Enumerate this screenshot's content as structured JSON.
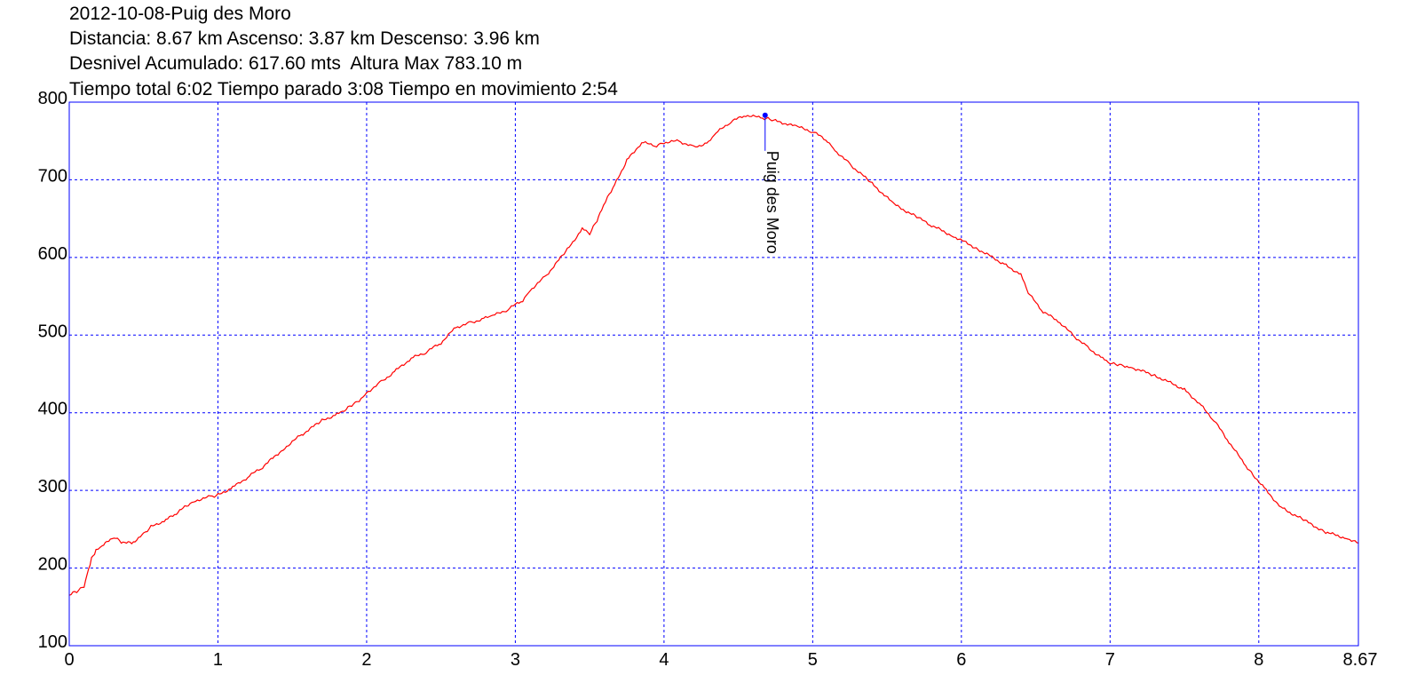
{
  "header": {
    "line1": "2012-10-08-Puig des Moro",
    "line2": "Distancia: 8.67 km Ascenso: 3.87 km Descenso: 3.96 km",
    "line3": "Desnivel Acumulado: 617.60 mts  Altura Max 783.10 m",
    "line4": "Tiempo total 6:02 Tiempo parado 3:08 Tiempo en movimiento 2:54"
  },
  "colors": {
    "line": "#ff0000",
    "grid": "#0000ff",
    "frame": "#0000ff",
    "marker": "#0000ff"
  },
  "chart_data": {
    "type": "line",
    "title": "2012-10-08-Puig des Moro",
    "xlabel": "",
    "ylabel": "",
    "xlim": [
      0,
      8.67
    ],
    "ylim": [
      100,
      800
    ],
    "xticks": [
      "0",
      "1",
      "2",
      "3",
      "4",
      "5",
      "6",
      "7",
      "8",
      "8.67"
    ],
    "yticks": [
      "100",
      "200",
      "300",
      "400",
      "500",
      "600",
      "700",
      "800"
    ],
    "grid": true,
    "series": [
      {
        "x": [
          0,
          0.05,
          0.1,
          0.12,
          0.15,
          0.18,
          0.22,
          0.3,
          0.35,
          0.42,
          0.5,
          0.55,
          0.65,
          0.72,
          0.8,
          0.85,
          0.95,
          1.0,
          1.1,
          1.2,
          1.3,
          1.45,
          1.55,
          1.7,
          1.8,
          1.85,
          1.9,
          1.95,
          2.0,
          2.1,
          2.2,
          2.3,
          2.4,
          2.5,
          2.6,
          2.7,
          2.8,
          2.85,
          2.95,
          3.05,
          3.1,
          3.2,
          3.35,
          3.45,
          3.5,
          3.55,
          3.58,
          3.62,
          3.68,
          3.75,
          3.85,
          3.95,
          4.0,
          4.1,
          4.2,
          4.3,
          4.35,
          4.45,
          4.55,
          4.65,
          4.7,
          4.75,
          4.9,
          5.0,
          5.1,
          5.15,
          5.25,
          5.4,
          5.55,
          5.7,
          5.8,
          5.95,
          6.1,
          6.3,
          6.4,
          6.45,
          6.55,
          6.65,
          6.75,
          6.85,
          6.95,
          7.0,
          7.05,
          7.1,
          7.15,
          7.3,
          7.5,
          7.6,
          7.7,
          7.8,
          7.9,
          7.95,
          8.05,
          8.15,
          8.3,
          8.45,
          8.6,
          8.67
        ],
        "y": [
          165,
          170,
          177,
          192,
          212,
          222,
          228,
          240,
          234,
          232,
          244,
          253,
          262,
          270,
          282,
          287,
          292,
          294,
          304,
          317,
          330,
          355,
          370,
          390,
          398,
          402,
          410,
          416,
          426,
          440,
          455,
          470,
          478,
          490,
          510,
          516,
          522,
          525,
          533,
          545,
          558,
          575,
          610,
          637,
          630,
          648,
          662,
          678,
          698,
          725,
          748,
          744,
          748,
          750,
          742,
          748,
          760,
          775,
          783,
          780,
          779,
          776,
          768,
          762,
          750,
          738,
          720,
          695,
          668,
          652,
          641,
          627,
          612,
          590,
          578,
          554,
          530,
          518,
          500,
          484,
          470,
          463,
          462,
          460,
          458,
          448,
          430,
          412,
          390,
          362,
          335,
          323,
          300,
          278,
          262,
          246,
          238,
          232
        ]
      }
    ],
    "annotations": [
      {
        "label": "Puig des Moro",
        "x": 4.68,
        "y": 783.1
      }
    ]
  }
}
